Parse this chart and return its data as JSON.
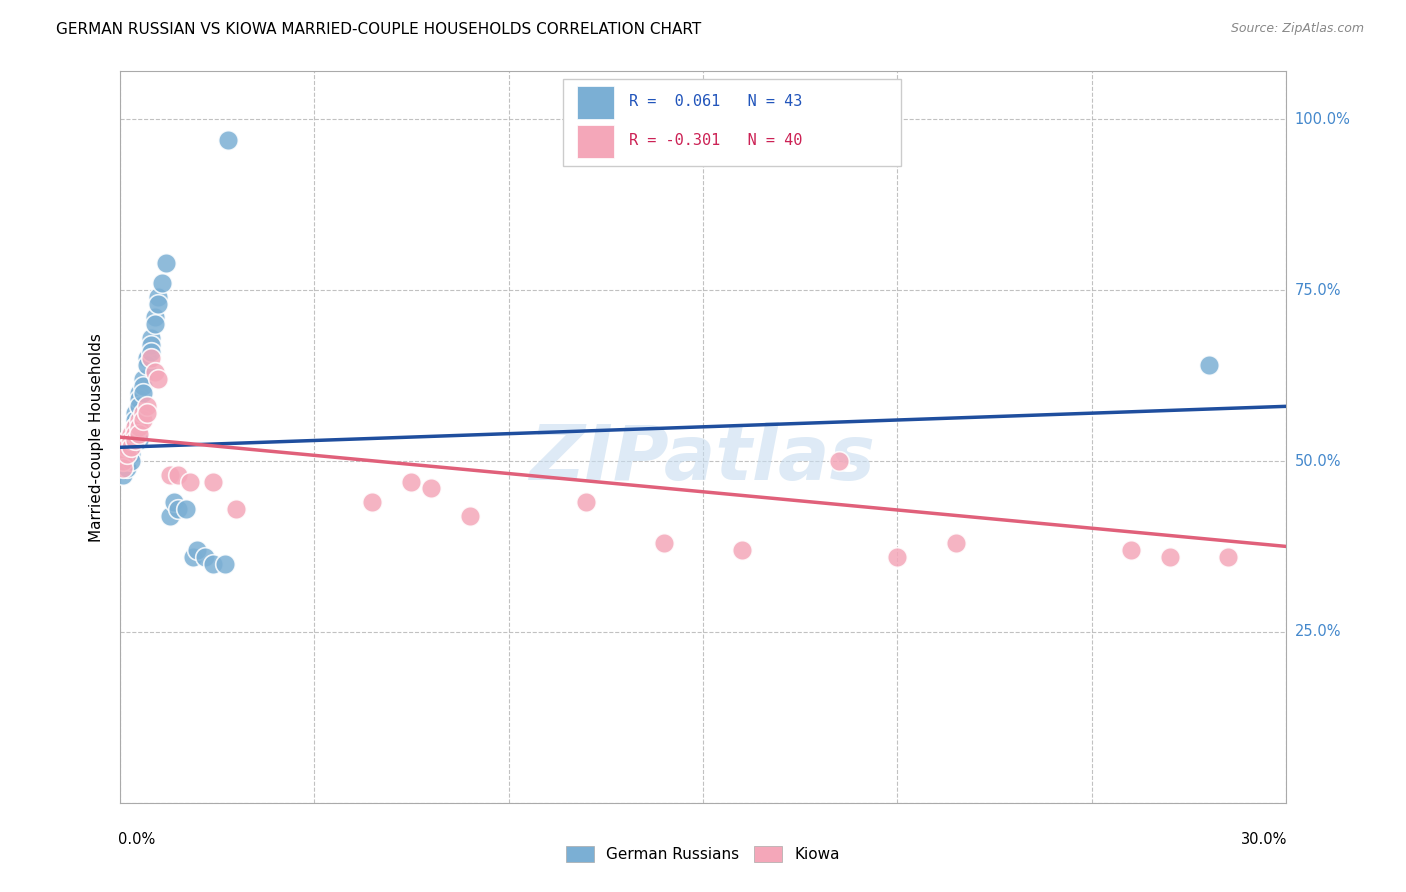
{
  "title": "GERMAN RUSSIAN VS KIOWA MARRIED-COUPLE HOUSEHOLDS CORRELATION CHART",
  "source": "Source: ZipAtlas.com",
  "ylabel": "Married-couple Households",
  "xlim": [
    0.0,
    0.3
  ],
  "ylim": [
    0.0,
    1.07
  ],
  "right_ytick_vals": [
    0.25,
    0.5,
    0.75,
    1.0
  ],
  "right_ytick_labels": [
    "25.0%",
    "50.0%",
    "75.0%",
    "100.0%"
  ],
  "legend_label_blue": "German Russians",
  "legend_label_pink": "Kiowa",
  "blue_color": "#7bafd4",
  "pink_color": "#f4a7b9",
  "blue_line_color": "#1f4e9e",
  "pink_line_color": "#e0607a",
  "watermark": "ZIPatlas",
  "background_color": "#ffffff",
  "grid_color": "#bbbbbb",
  "blue_scatter_x": [
    0.001,
    0.001,
    0.001,
    0.002,
    0.002,
    0.002,
    0.002,
    0.003,
    0.003,
    0.003,
    0.003,
    0.004,
    0.004,
    0.004,
    0.005,
    0.005,
    0.005,
    0.005,
    0.006,
    0.006,
    0.006,
    0.007,
    0.007,
    0.008,
    0.008,
    0.008,
    0.009,
    0.009,
    0.01,
    0.01,
    0.011,
    0.012,
    0.013,
    0.014,
    0.015,
    0.017,
    0.019,
    0.02,
    0.022,
    0.024,
    0.027,
    0.028,
    0.28
  ],
  "blue_scatter_y": [
    0.5,
    0.49,
    0.48,
    0.52,
    0.51,
    0.5,
    0.49,
    0.53,
    0.52,
    0.51,
    0.5,
    0.57,
    0.56,
    0.55,
    0.6,
    0.59,
    0.58,
    0.53,
    0.62,
    0.61,
    0.6,
    0.65,
    0.64,
    0.68,
    0.67,
    0.66,
    0.71,
    0.7,
    0.74,
    0.73,
    0.76,
    0.79,
    0.42,
    0.44,
    0.43,
    0.43,
    0.36,
    0.37,
    0.36,
    0.35,
    0.35,
    0.97,
    0.64
  ],
  "pink_scatter_x": [
    0.001,
    0.001,
    0.001,
    0.002,
    0.002,
    0.002,
    0.003,
    0.003,
    0.003,
    0.004,
    0.004,
    0.004,
    0.005,
    0.005,
    0.005,
    0.006,
    0.006,
    0.007,
    0.007,
    0.008,
    0.009,
    0.01,
    0.013,
    0.015,
    0.018,
    0.024,
    0.03,
    0.065,
    0.075,
    0.08,
    0.09,
    0.12,
    0.14,
    0.16,
    0.185,
    0.2,
    0.215,
    0.26,
    0.27,
    0.285
  ],
  "pink_scatter_y": [
    0.51,
    0.5,
    0.49,
    0.53,
    0.52,
    0.51,
    0.54,
    0.53,
    0.52,
    0.55,
    0.54,
    0.53,
    0.56,
    0.55,
    0.54,
    0.57,
    0.56,
    0.58,
    0.57,
    0.65,
    0.63,
    0.62,
    0.48,
    0.48,
    0.47,
    0.47,
    0.43,
    0.44,
    0.47,
    0.46,
    0.42,
    0.44,
    0.38,
    0.37,
    0.5,
    0.36,
    0.38,
    0.37,
    0.36,
    0.36
  ]
}
